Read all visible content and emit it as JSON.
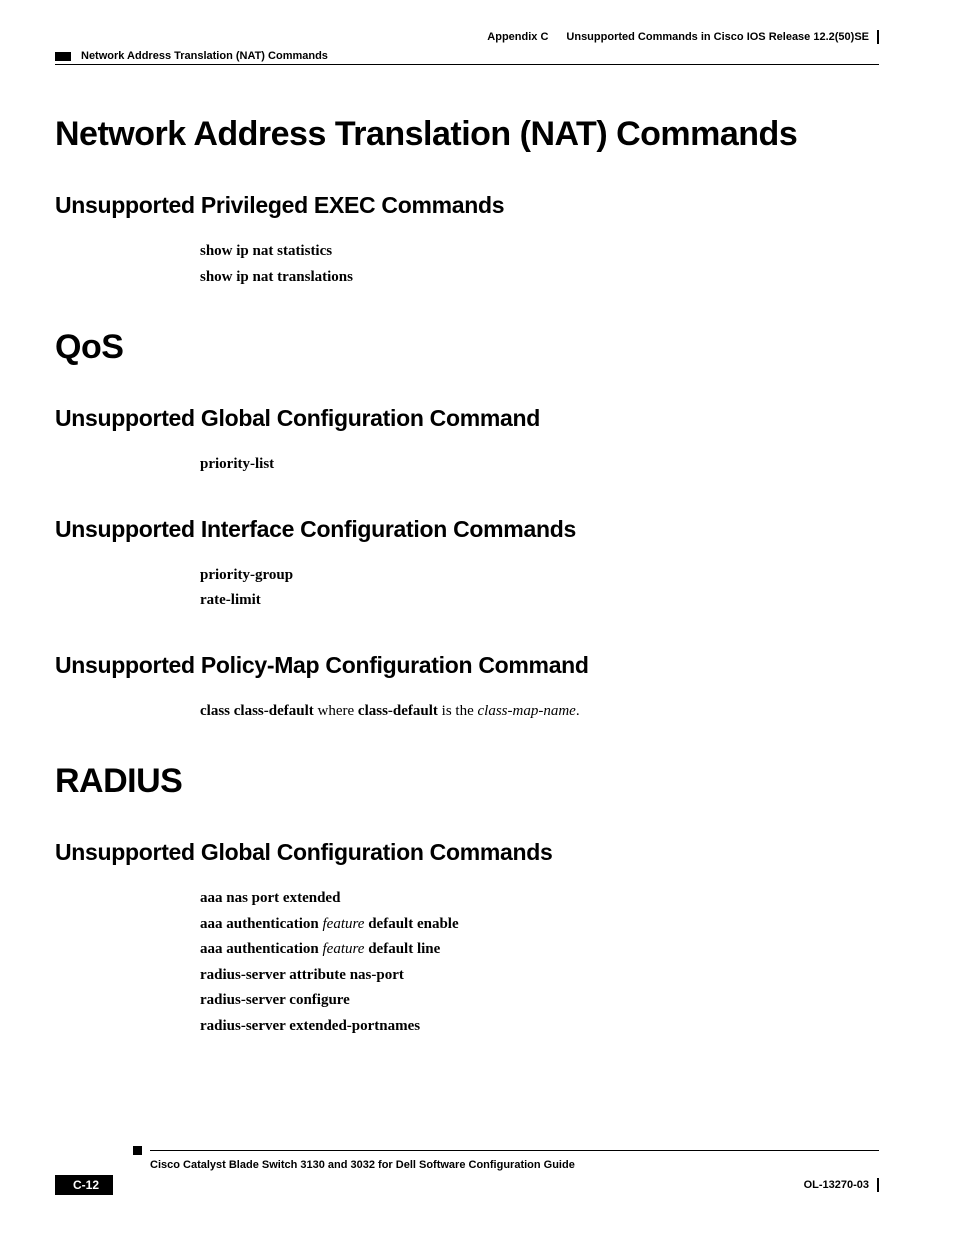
{
  "header": {
    "appendix": "Appendix C",
    "appendix_title": "Unsupported Commands in Cisco IOS Release 12.2(50)SE",
    "section_title": "Network Address Translation (NAT) Commands"
  },
  "sections": [
    {
      "h1": "Network Address Translation (NAT) Commands",
      "subsections": [
        {
          "h2": "Unsupported Privileged EXEC Commands",
          "lines": [
            [
              {
                "text": "show ip nat statistics",
                "style": "bold"
              }
            ],
            [
              {
                "text": "show ip nat translations",
                "style": "bold"
              }
            ]
          ]
        }
      ]
    },
    {
      "h1": "QoS",
      "subsections": [
        {
          "h2": "Unsupported Global Configuration Command",
          "lines": [
            [
              {
                "text": "priority-list",
                "style": "bold"
              }
            ]
          ]
        },
        {
          "h2": "Unsupported Interface Configuration Commands",
          "lines": [
            [
              {
                "text": "priority-group",
                "style": "bold"
              }
            ],
            [
              {
                "text": "rate-limit",
                "style": "bold"
              }
            ]
          ]
        },
        {
          "h2": "Unsupported Policy-Map Configuration Command",
          "lines": [
            [
              {
                "text": "class class-default",
                "style": "bold"
              },
              {
                "text": " where ",
                "style": "normal"
              },
              {
                "text": "class-default",
                "style": "bold"
              },
              {
                "text": " is the ",
                "style": "normal"
              },
              {
                "text": "class-map-name",
                "style": "italic"
              },
              {
                "text": ".",
                "style": "normal"
              }
            ]
          ]
        }
      ]
    },
    {
      "h1": "RADIUS",
      "subsections": [
        {
          "h2": "Unsupported Global Configuration Commands",
          "lines": [
            [
              {
                "text": "aaa nas port extended",
                "style": "bold"
              }
            ],
            [
              {
                "text": "aaa authentication ",
                "style": "bold"
              },
              {
                "text": "feature",
                "style": "italic"
              },
              {
                "text": " default enable",
                "style": "bold"
              }
            ],
            [
              {
                "text": "aaa authentication ",
                "style": "bold"
              },
              {
                "text": "feature",
                "style": "italic"
              },
              {
                "text": " default line",
                "style": "bold"
              }
            ],
            [
              {
                "text": "radius-server attribute nas-port",
                "style": "bold"
              }
            ],
            [
              {
                "text": "radius-server configure",
                "style": "bold"
              }
            ],
            [
              {
                "text": "radius-server extended-portnames",
                "style": "bold"
              }
            ]
          ]
        }
      ]
    }
  ],
  "footer": {
    "book_title": "Cisco Catalyst Blade Switch 3130 and 3032 for Dell Software Configuration Guide",
    "page_number": "C-12",
    "doc_id": "OL-13270-03"
  }
}
